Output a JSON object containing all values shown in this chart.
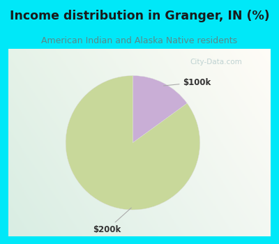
{
  "title": "Income distribution in Granger, IN (%)",
  "subtitle": "American Indian and Alaska Native residents",
  "title_color": "#1a1a1a",
  "subtitle_color": "#5a8a8a",
  "title_bg_color": "#00e8f8",
  "chart_bg_left": "#d8ede4",
  "chart_bg_right": "#f5faf7",
  "chart_border_color": "#00e8f8",
  "slices": [
    {
      "label": "$100k",
      "value": 15,
      "color": "#c9aed6"
    },
    {
      "label": "$200k",
      "value": 85,
      "color": "#c8d89a"
    }
  ],
  "watermark": "City-Data.com",
  "watermark_color": "#b8cece",
  "annotation_color": "#aaaaaa",
  "label_color": "#333333",
  "figsize": [
    4.0,
    3.5
  ],
  "dpi": 100
}
